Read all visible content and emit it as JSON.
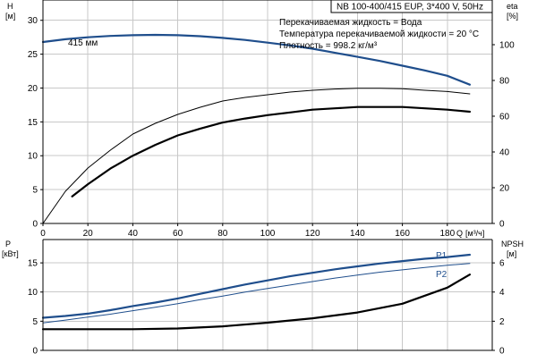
{
  "title": "NB 100-400/415 EUP, 3*400 V, 50Hz",
  "info_lines": [
    "Перекачиваемая жидкость = Вода",
    "Температура перекачиваемой жидкости = 20 °C",
    "Плотность = 998.2 кг/м³"
  ],
  "chart_data": [
    {
      "type": "line",
      "panel": "top",
      "x_axis": {
        "label": "Q",
        "unit": "[м³/ч]",
        "range": [
          0,
          200
        ],
        "ticks": [
          0,
          20,
          40,
          60,
          80,
          100,
          120,
          140,
          160,
          180
        ]
      },
      "y_axis_left": {
        "label": "H",
        "unit": "[м]",
        "range": [
          0,
          33
        ],
        "ticks": [
          0,
          5,
          10,
          15,
          20,
          25,
          30
        ]
      },
      "y_axis_right": {
        "label": "eta",
        "unit": "[%]",
        "range": [
          0,
          125
        ],
        "ticks": [
          0,
          20,
          40,
          60,
          80,
          100
        ]
      },
      "grid": true,
      "annotations": [
        "415 мм"
      ],
      "series": [
        {
          "axis": "left",
          "color": "#1f4e8c",
          "width": 2.2,
          "x": [
            0,
            10,
            20,
            30,
            40,
            50,
            60,
            70,
            80,
            90,
            100,
            110,
            120,
            130,
            140,
            150,
            160,
            170,
            180,
            190
          ],
          "y": [
            26.8,
            27.2,
            27.5,
            27.7,
            27.8,
            27.85,
            27.8,
            27.65,
            27.4,
            27.1,
            26.7,
            26.3,
            25.8,
            25.2,
            24.6,
            24.0,
            23.3,
            22.6,
            21.8,
            20.5
          ]
        },
        {
          "axis": "right",
          "color": "#000000",
          "width": 1,
          "x": [
            0,
            10,
            20,
            30,
            40,
            50,
            60,
            70,
            80,
            90,
            100,
            110,
            120,
            130,
            140,
            150,
            160,
            170,
            180,
            190
          ],
          "y": [
            0,
            18,
            31,
            41,
            50,
            56,
            61,
            65,
            68.5,
            70.5,
            72,
            73.5,
            74.5,
            75.2,
            75.6,
            75.6,
            75.4,
            74.5,
            73.8,
            72.5
          ]
        },
        {
          "axis": "left",
          "color": "#000000",
          "width": 2.2,
          "x": [
            13,
            20,
            30,
            40,
            50,
            60,
            70,
            80,
            90,
            100,
            110,
            120,
            130,
            140,
            150,
            160,
            170,
            180,
            190
          ],
          "y": [
            4.0,
            5.8,
            8.1,
            10.0,
            11.6,
            13.0,
            14.0,
            14.9,
            15.5,
            16.0,
            16.4,
            16.8,
            17.0,
            17.2,
            17.2,
            17.2,
            17.0,
            16.8,
            16.5
          ]
        }
      ]
    },
    {
      "type": "line",
      "panel": "bottom",
      "x_axis": {
        "range": [
          0,
          200
        ]
      },
      "y_axis_left": {
        "label": "P",
        "unit": "[кВт]",
        "range": [
          0,
          19
        ],
        "ticks": [
          0,
          5,
          10,
          15
        ]
      },
      "y_axis_right": {
        "label": "NPSH",
        "unit": "[м]",
        "range": [
          0,
          7.6
        ],
        "ticks": [
          0,
          2,
          4,
          6
        ]
      },
      "grid": true,
      "series": [
        {
          "name": "P1",
          "axis": "left",
          "color": "#1f4e8c",
          "width": 2.2,
          "x": [
            0,
            10,
            20,
            30,
            40,
            50,
            60,
            70,
            80,
            90,
            100,
            110,
            120,
            130,
            140,
            150,
            160,
            170,
            180,
            190
          ],
          "y": [
            5.6,
            5.9,
            6.3,
            6.9,
            7.6,
            8.2,
            8.9,
            9.7,
            10.5,
            11.3,
            12.0,
            12.7,
            13.3,
            13.9,
            14.4,
            14.9,
            15.3,
            15.7,
            16.0,
            16.4
          ]
        },
        {
          "name": "P2",
          "axis": "left",
          "color": "#1f4e8c",
          "width": 1,
          "x": [
            0,
            10,
            20,
            30,
            40,
            50,
            60,
            70,
            80,
            90,
            100,
            110,
            120,
            130,
            140,
            150,
            160,
            170,
            180,
            190
          ],
          "y": [
            4.7,
            5.2,
            5.7,
            6.2,
            6.8,
            7.4,
            8.0,
            8.7,
            9.3,
            10.0,
            10.6,
            11.2,
            11.8,
            12.4,
            12.9,
            13.4,
            13.8,
            14.2,
            14.6,
            14.9
          ]
        },
        {
          "axis": "right",
          "color": "#000000",
          "width": 2.2,
          "x": [
            0,
            20,
            40,
            60,
            80,
            100,
            120,
            140,
            160,
            180,
            190
          ],
          "y": [
            1.45,
            1.45,
            1.45,
            1.5,
            1.65,
            1.9,
            2.2,
            2.6,
            3.2,
            4.3,
            5.2
          ]
        }
      ]
    }
  ]
}
